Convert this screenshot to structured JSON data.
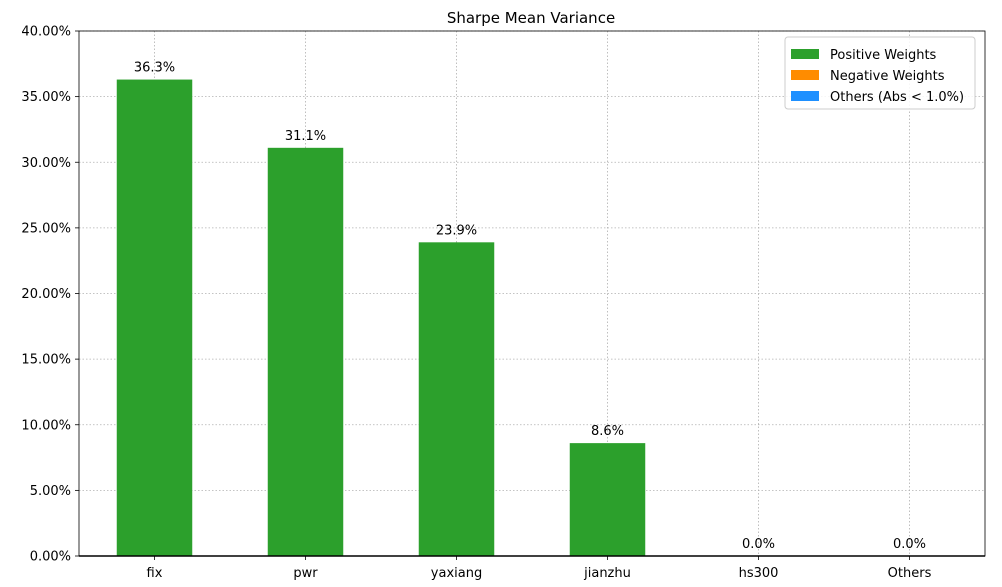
{
  "chart_data": {
    "type": "bar",
    "title": "Sharpe Mean Variance",
    "xlabel": "",
    "ylabel": "",
    "categories": [
      "fix",
      "pwr",
      "yaxiang",
      "jianzhu",
      "hs300",
      "Others"
    ],
    "values": [
      36.3,
      31.1,
      23.9,
      8.6,
      0.0,
      0.0
    ],
    "data_labels": [
      "36.3%",
      "31.1%",
      "23.9%",
      "8.6%",
      "0.0%",
      "0.0%"
    ],
    "ylim": [
      0,
      40
    ],
    "yticks": [
      0,
      5,
      10,
      15,
      20,
      25,
      30,
      35,
      40
    ],
    "ytick_labels": [
      "0.00%",
      "5.00%",
      "10.00%",
      "15.00%",
      "20.00%",
      "25.00%",
      "30.00%",
      "35.00%",
      "40.00%"
    ],
    "grid": true,
    "legend_position": "top-right",
    "legend": [
      {
        "label": "Positive Weights",
        "color": "#2ca02c"
      },
      {
        "label": "Negative Weights",
        "color": "#ff8c00"
      },
      {
        "label": "Others (Abs < 1.0%)",
        "color": "#1e90ff"
      }
    ],
    "bar_color": "#2ca02c"
  }
}
